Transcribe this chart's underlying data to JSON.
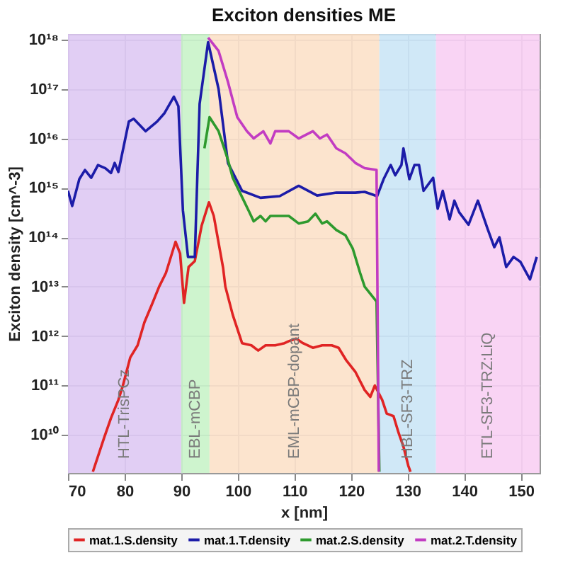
{
  "chart_data": {
    "type": "line",
    "title": "Exciton densities ME",
    "xlabel": "x [nm]",
    "ylabel": "Exciton density [cm^-3]",
    "log": "y",
    "grid": true,
    "legend": "bottom",
    "line_style": "solid",
    "marker": "none",
    "xlim": [
      70,
      153.3
    ],
    "xticks": [
      70,
      80,
      90,
      100,
      110,
      120,
      130,
      140,
      150
    ],
    "ylim": [
      1700000000.0,
      1.3e+18
    ],
    "yticks": [
      {
        "value": 10000000000.0,
        "label": "10¹⁰"
      },
      {
        "value": 100000000000.0,
        "label": "10¹¹"
      },
      {
        "value": 1000000000000.0,
        "label": "10¹²"
      },
      {
        "value": 10000000000000.0,
        "label": "10¹³"
      },
      {
        "value": 100000000000000.0,
        "label": "10¹⁴"
      },
      {
        "value": 1000000000000000.0,
        "label": "10¹⁵"
      },
      {
        "value": 1e+16,
        "label": "10¹⁶"
      },
      {
        "value": 1e+17,
        "label": "10¹⁷"
      },
      {
        "value": 1e+18,
        "label": "10¹⁸"
      }
    ],
    "bands": [
      {
        "axis": "x",
        "from": 70,
        "to": 90,
        "label": "HTL-TrisPCz",
        "color": "#dcc6f2"
      },
      {
        "axis": "x",
        "from": 90,
        "to": 95,
        "label": "EBL-mCBP",
        "color": "#c6f2c6"
      },
      {
        "axis": "x",
        "from": 95,
        "to": 125,
        "label": "EML-mCBP-dopant",
        "color": "#fbdfc6"
      },
      {
        "axis": "x",
        "from": 125,
        "to": 135,
        "label": "HBL-SF3-TRZ",
        "color": "#c8e4f6"
      },
      {
        "axis": "x",
        "from": 135,
        "to": 153.3,
        "label": "ETL-SF3-TRZ:LiQ",
        "color": "#f8ccf2"
      }
    ],
    "series": [
      {
        "name": "mat.1.S.density",
        "color": "#e02424",
        "x": [
          74.4,
          76.4,
          77.6,
          78.9,
          79.7,
          81,
          82.3,
          83.5,
          84.8,
          86.1,
          87.3,
          89,
          89.8,
          90.5,
          91.3,
          92.4,
          93.6,
          94.9,
          95.75,
          97.4,
          97.8,
          99.1,
          100.75,
          102.4,
          103.6,
          104.9,
          106.6,
          108.25,
          109,
          110.3,
          111.5,
          113.25,
          114.9,
          116.6,
          117.8,
          119.1,
          120.75,
          122.4,
          123.4,
          124.2,
          125.5,
          126.3,
          127.5,
          128.4,
          129.25,
          130.1,
          130.5
        ],
        "values": [
          1800000000.0,
          8900000000.0,
          22000000000.0,
          51000000000.0,
          100000000000.0,
          370000000000.0,
          650000000000.0,
          1900000000000.0,
          4300000000000.0,
          10000000000000.0,
          19000000000000.0,
          81000000000000.0,
          47000000000000.0,
          4700000000000.0,
          25000000000000.0,
          33000000000000.0,
          170000000000000.0,
          510000000000000.0,
          270000000000000.0,
          24000000000000.0,
          10000000000000.0,
          2700000000000.0,
          720000000000.0,
          650000000000.0,
          510000000000.0,
          650000000000.0,
          650000000000.0,
          720000000000.0,
          790000000000.0,
          890000000000.0,
          720000000000.0,
          580000000000.0,
          650000000000.0,
          650000000000.0,
          580000000000.0,
          330000000000.0,
          190000000000.0,
          81000000000.0,
          59000000000.0,
          100000000000.0,
          51000000000.0,
          27000000000.0,
          24000000000.0,
          11000000000.0,
          5800000000.0,
          2400000000.0,
          1800000000.0
        ]
      },
      {
        "name": "mat.1.T.density",
        "color": "#1c1ca8",
        "x": [
          70,
          70.75,
          72,
          73,
          74.1,
          75.3,
          76.6,
          77.6,
          78.25,
          78.9,
          80.75,
          81.6,
          83.7,
          85.75,
          87,
          88.7,
          89.5,
          90.3,
          91.2,
          92.4,
          93.25,
          94.75,
          96.6,
          98.25,
          100.75,
          104,
          107.4,
          110.75,
          114,
          117.4,
          120.75,
          122.4,
          124.6,
          125.75,
          127,
          127.8,
          128.9,
          129.25,
          130.3,
          131.2,
          132,
          132.8,
          134.5,
          135.3,
          136.2,
          137.4,
          138.25,
          139.1,
          140.75,
          142.4,
          144.1,
          145.3,
          146.2,
          147.4,
          148.7,
          149.9,
          151.6,
          152.8
        ],
        "values": [
          870000000000000.0,
          430000000000000.0,
          1500000000000000.0,
          2300000000000000.0,
          1600000000000000.0,
          2900000000000000.0,
          2500000000000000.0,
          2000000000000000.0,
          3200000000000000.0,
          2100000000000000.0,
          2.2e+16,
          2.5e+16,
          1.4e+16,
          2.2e+16,
          3.2e+16,
          7e+16,
          4.5e+16,
          350000000000000.0,
          40000000000000.0,
          40000000000000.0,
          5e+16,
          8.9e+17,
          1e+17,
          3200000000000000.0,
          870000000000000.0,
          630000000000000.0,
          680000000000000.0,
          1100000000000000.0,
          700000000000000.0,
          800000000000000.0,
          800000000000000.0,
          830000000000000.0,
          680000000000000.0,
          1500000000000000.0,
          2900000000000000.0,
          1800000000000000.0,
          2900000000000000.0,
          6300000000000000.0,
          1500000000000000.0,
          2900000000000000.0,
          2900000000000000.0,
          870000000000000.0,
          1600000000000000.0,
          380000000000000.0,
          870000000000000.0,
          230000000000000.0,
          550000000000000.0,
          320000000000000.0,
          180000000000000.0,
          550000000000000.0,
          150000000000000.0,
          63000000000000.0,
          100000000000000.0,
          25000000000000.0,
          40000000000000.0,
          32000000000000.0,
          14000000000000.0,
          40000000000000.0
        ]
      },
      {
        "name": "mat.2.S.density",
        "color": "#2e9a2e",
        "x": [
          94.1,
          95,
          96.6,
          98.25,
          99.1,
          100.75,
          102,
          102.8,
          104,
          104.9,
          105.75,
          107.4,
          109,
          110.75,
          112.4,
          113.7,
          114.9,
          115.75,
          117.4,
          119,
          120.3,
          121.6,
          122.4,
          124.5,
          125
        ],
        "values": [
          6300000000000000.0,
          2.7e+16,
          1.4e+16,
          3700000000000000.0,
          1600000000000000.0,
          650000000000000.0,
          330000000000000.0,
          210000000000000.0,
          270000000000000.0,
          210000000000000.0,
          270000000000000.0,
          270000000000000.0,
          270000000000000.0,
          190000000000000.0,
          210000000000000.0,
          300000000000000.0,
          190000000000000.0,
          210000000000000.0,
          140000000000000.0,
          110000000000000.0,
          59000000000000.0,
          19000000000000.0,
          10000000000000.0,
          5000000000000.0,
          1800000000.0
        ]
      },
      {
        "name": "mat.2.T.density",
        "color": "#c23cc2",
        "x": [
          94.75,
          96.6,
          98.25,
          99.9,
          101.6,
          102.8,
          104.5,
          105.75,
          106.6,
          109,
          110.75,
          113.25,
          114.5,
          115.75,
          117.4,
          119,
          120.75,
          122.4,
          124.5,
          124.9
        ],
        "values": [
          1.1e+18,
          5.9e+17,
          1.4e+17,
          2.7e+16,
          1.4e+16,
          1e+16,
          1.4e+16,
          7900000000000000.0,
          1.4e+16,
          1.4e+16,
          1e+16,
          1.4e+16,
          1e+16,
          1.2e+16,
          6300000000000000.0,
          5000000000000000.0,
          3200000000000000.0,
          2500000000000000.0,
          2300000000000000.0,
          1800000000.0
        ]
      }
    ]
  }
}
